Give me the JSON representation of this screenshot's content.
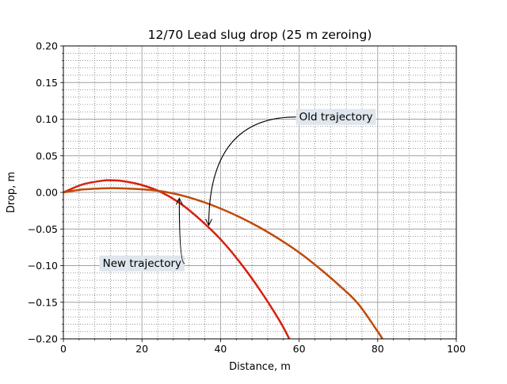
{
  "chart_data": {
    "type": "line",
    "title": "12/70 Lead slug drop (25 m zeroing)",
    "xlabel": "Distance, m",
    "ylabel": "Drop, m",
    "xlim": [
      0,
      100
    ],
    "ylim": [
      -0.2,
      0.2
    ],
    "x_ticks": [
      0,
      20,
      40,
      60,
      80,
      100
    ],
    "y_ticks": [
      -0.2,
      -0.15,
      -0.1,
      -0.05,
      0.0,
      0.05,
      0.1,
      0.15,
      0.2
    ],
    "x_tick_labels": [
      "0",
      "20",
      "40",
      "60",
      "80",
      "100"
    ],
    "y_tick_labels": [
      "−0.20",
      "−0.15",
      "−0.10",
      "−0.05",
      "0.00",
      "0.05",
      "0.10",
      "0.15",
      "0.20"
    ],
    "grid": {
      "major": true,
      "minor": true
    },
    "series": [
      {
        "color": "#d62010",
        "x": [
          0,
          5,
          10,
          12,
          15,
          20,
          25,
          30,
          35,
          40,
          45,
          50,
          55,
          57.5
        ],
        "y": [
          0.0,
          0.011,
          0.016,
          0.0165,
          0.0155,
          0.01,
          0.0,
          -0.016,
          -0.038,
          -0.064,
          -0.096,
          -0.133,
          -0.175,
          -0.2
        ]
      },
      {
        "color": "#c04a0a",
        "x": [
          0,
          5,
          10,
          13,
          15,
          20,
          25,
          30,
          35,
          40,
          45,
          50,
          55,
          60,
          65,
          70,
          75,
          80,
          81.2
        ],
        "y": [
          0.0,
          0.004,
          0.0055,
          0.0058,
          0.0055,
          0.0042,
          0.0015,
          -0.004,
          -0.012,
          -0.022,
          -0.034,
          -0.048,
          -0.064,
          -0.082,
          -0.103,
          -0.126,
          -0.152,
          -0.19,
          -0.2
        ]
      }
    ],
    "annotations": [
      {
        "text": "Old trajectory",
        "text_xy": [
          60,
          0.104
        ],
        "arrow_to": [
          37,
          -0.045
        ]
      },
      {
        "text": "New trajectory",
        "text_xy": [
          10,
          -0.096
        ],
        "arrow_to": [
          29.5,
          -0.008
        ]
      }
    ]
  }
}
